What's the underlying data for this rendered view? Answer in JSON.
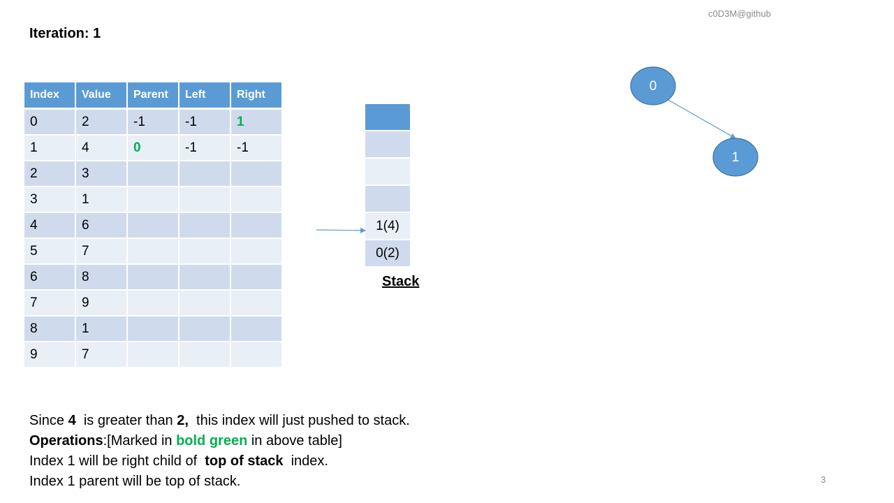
{
  "watermark": "c0D3M@github",
  "iteration_title": "Iteration: 1",
  "table": {
    "headers": [
      "Index",
      "Value",
      "Parent",
      "Left",
      "Right"
    ],
    "rows": [
      [
        "0",
        "2",
        "-1",
        "-1",
        "1"
      ],
      [
        "1",
        "4",
        "0",
        "-1",
        "-1"
      ],
      [
        "2",
        "3",
        "",
        "",
        ""
      ],
      [
        "3",
        "1",
        "",
        "",
        ""
      ],
      [
        "4",
        "6",
        "",
        "",
        ""
      ],
      [
        "5",
        "7",
        "",
        "",
        ""
      ],
      [
        "6",
        "8",
        "",
        "",
        ""
      ],
      [
        "7",
        "9",
        "",
        "",
        ""
      ],
      [
        "8",
        "1",
        "",
        "",
        ""
      ],
      [
        "9",
        "7",
        "",
        "",
        ""
      ]
    ],
    "highlighted_color": "#00b050"
  },
  "stack": {
    "label": "Stack",
    "slots": [
      "",
      "",
      "",
      "",
      "1(4)",
      "0(2)"
    ]
  },
  "tree": {
    "nodes": [
      {
        "label": "0"
      },
      {
        "label": "1"
      }
    ],
    "node_color": "#5b9bd5"
  },
  "description": {
    "line1": {
      "p1": "Since ",
      "b1": "4",
      "p2": "  is greater than ",
      "b2": "2,",
      "p3": "  this index will just pushed to stack."
    },
    "line2": {
      "b1": "Operations",
      "p1": ":[Marked in ",
      "g1": "bold green",
      "p2": " in above table]"
    },
    "line3": {
      "p1": "Index 1 will be right child of  ",
      "b1": "top of stack",
      "p2": "  index."
    },
    "line4": "Index 1 parent will be top of stack."
  },
  "page_number": "3"
}
